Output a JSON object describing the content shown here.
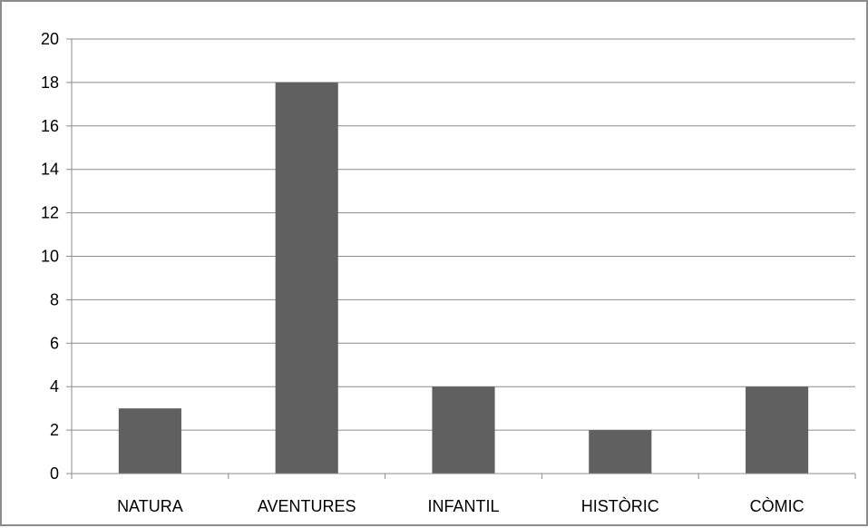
{
  "chart_data": {
    "type": "bar",
    "categories": [
      "NATURA",
      "AVENTURES",
      "INFANTIL",
      "HISTÒRIC",
      "CÒMIC"
    ],
    "values": [
      3,
      18,
      4,
      2,
      4
    ],
    "title": "",
    "xlabel": "",
    "ylabel": "",
    "ylim": [
      0,
      20
    ],
    "yticks": [
      "0",
      "2",
      "4",
      "6",
      "8",
      "10",
      "12",
      "14",
      "16",
      "18",
      "20"
    ],
    "grid": "horizontal",
    "legend": "none",
    "colors": {
      "bar": "#606060",
      "gridline": "#8c8c8c",
      "axis": "#8c8c8c",
      "frame": "#8c8c8c"
    }
  }
}
